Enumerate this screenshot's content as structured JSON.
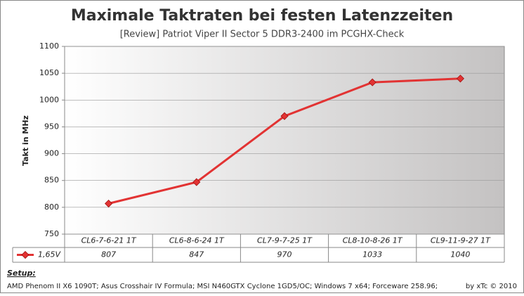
{
  "chart_data": {
    "type": "line",
    "title": "Maximale Taktraten bei festen Latenzzeiten",
    "subtitle": "[Review] Patriot Viper II Sector 5 DDR3-2400 im PCGHX-Check",
    "y_label": "Takt in MHz",
    "categories": [
      "CL6-7-6-21 1T",
      "CL6-8-6-24 1T",
      "CL7-9-7-25 1T",
      "CL8-10-8-26 1T",
      "CL9-11-9-27 1T"
    ],
    "series": [
      {
        "name": "1,65V",
        "color": "#e23333",
        "values": [
          807,
          847,
          970,
          1033,
          1040
        ]
      }
    ],
    "ylim": [
      750,
      1100
    ],
    "yticks": [
      750,
      800,
      850,
      900,
      950,
      1000,
      1050,
      1100
    ],
    "grid": true
  },
  "footer": {
    "setup_label": "Setup:",
    "setup": "AMD Phenom II X6 1090T; Asus Crosshair IV Formula; MSI N460GTX Cyclone 1GD5/OC; Windows 7 x64; Forceware 258.96;",
    "credit": "by xTc © 2010"
  }
}
